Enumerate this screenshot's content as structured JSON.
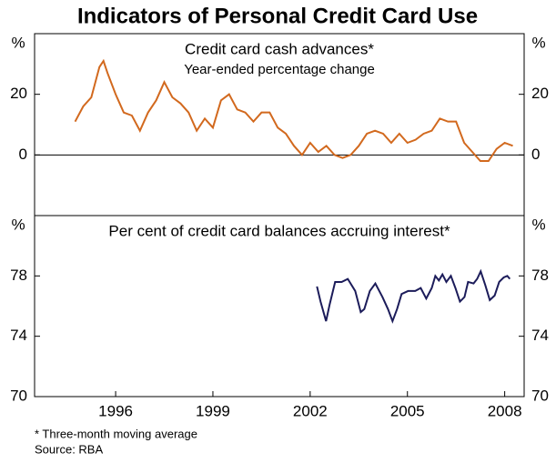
{
  "title": "Indicators of Personal Credit Card Use",
  "footnote": "*   Three-month moving average",
  "source": "Source: RBA",
  "chart_data": [
    {
      "type": "line",
      "title": "Credit card cash advances*",
      "subtitle": "Year-ended percentage change",
      "ylabel": "%",
      "color": "#d2691e",
      "zero_line": true,
      "xlim": [
        1993.5,
        2008.6
      ],
      "ylim": [
        -20,
        40
      ],
      "yticks": [
        0,
        20
      ],
      "x": [
        1994.75,
        1995.0,
        1995.25,
        1995.5,
        1995.625,
        1995.75,
        1996.0,
        1996.25,
        1996.5,
        1996.75,
        1997.0,
        1997.25,
        1997.5,
        1997.75,
        1998.0,
        1998.25,
        1998.5,
        1998.75,
        1999.0,
        1999.25,
        1999.5,
        1999.75,
        2000.0,
        2000.25,
        2000.5,
        2000.75,
        2001.0,
        2001.25,
        2001.5,
        2001.75,
        2002.0,
        2002.25,
        2002.5,
        2002.75,
        2003.0,
        2003.25,
        2003.5,
        2003.75,
        2004.0,
        2004.25,
        2004.5,
        2004.75,
        2005.0,
        2005.25,
        2005.5,
        2005.75,
        2006.0,
        2006.25,
        2006.5,
        2006.75,
        2007.0,
        2007.25,
        2007.5,
        2007.75,
        2008.0,
        2008.25
      ],
      "values": [
        11,
        16,
        19,
        29,
        31,
        27,
        20,
        14,
        13,
        8,
        14,
        18,
        24,
        19,
        17,
        14,
        8,
        12,
        9,
        18,
        20,
        15,
        14,
        11,
        14,
        14,
        9,
        7,
        3,
        0,
        4,
        1,
        3,
        0,
        -1,
        0,
        3,
        7,
        8,
        7,
        4,
        7,
        4,
        5,
        7,
        8,
        12,
        11,
        11,
        4,
        1,
        -2,
        -2,
        2,
        4,
        3
      ]
    },
    {
      "type": "line",
      "title": "Per cent of credit card balances accruing interest*",
      "ylabel": "%",
      "color": "#1c1c5a",
      "xlim": [
        1993.5,
        2008.6
      ],
      "xticks": [
        1996,
        1999,
        2002,
        2005,
        2008
      ],
      "ylim": [
        70,
        82
      ],
      "yticks": [
        70,
        74,
        78
      ],
      "x": [
        2002.21,
        2002.32,
        2002.49,
        2002.6,
        2002.77,
        2002.97,
        2003.16,
        2003.39,
        2003.56,
        2003.67,
        2003.84,
        2004.01,
        2004.23,
        2004.4,
        2004.54,
        2004.68,
        2004.82,
        2005.02,
        2005.24,
        2005.41,
        2005.58,
        2005.75,
        2005.86,
        2005.97,
        2006.08,
        2006.2,
        2006.34,
        2006.48,
        2006.62,
        2006.76,
        2006.87,
        2007.04,
        2007.15,
        2007.26,
        2007.4,
        2007.54,
        2007.69,
        2007.83,
        2007.97,
        2008.08,
        2008.16
      ],
      "values": [
        77.3,
        76.3,
        75.0,
        76.1,
        77.6,
        77.6,
        77.8,
        77.0,
        75.6,
        75.8,
        77.0,
        77.5,
        76.6,
        75.8,
        75.0,
        75.8,
        76.8,
        77.0,
        77.0,
        77.2,
        76.5,
        77.2,
        78.0,
        77.7,
        78.1,
        77.6,
        78.0,
        77.2,
        76.3,
        76.6,
        77.6,
        77.5,
        77.8,
        78.3,
        77.4,
        76.4,
        76.7,
        77.6,
        77.9,
        78.0,
        77.8
      ]
    }
  ]
}
